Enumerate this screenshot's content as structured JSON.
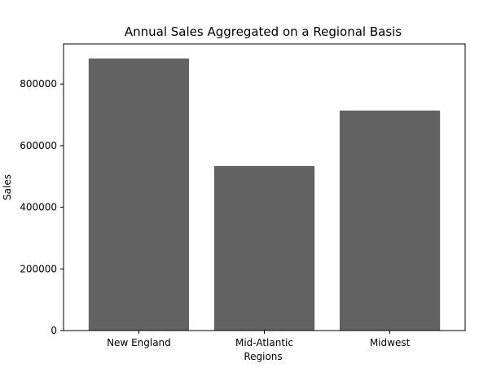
{
  "chart_data": {
    "type": "bar",
    "title": "Annual Sales Aggregated on a Regional Basis",
    "xlabel": "Regions",
    "ylabel": "Sales",
    "categories": [
      "New England",
      "Mid-Atlantic",
      "Midwest"
    ],
    "values": [
      883000,
      534000,
      714000
    ],
    "ylim": [
      0,
      930000
    ],
    "yticks": [
      0,
      200000,
      400000,
      600000,
      800000
    ],
    "ytick_labels": [
      "0",
      "200000",
      "400000",
      "600000",
      "800000"
    ],
    "bar_color": "#626262",
    "grid": false,
    "legend": false
  }
}
